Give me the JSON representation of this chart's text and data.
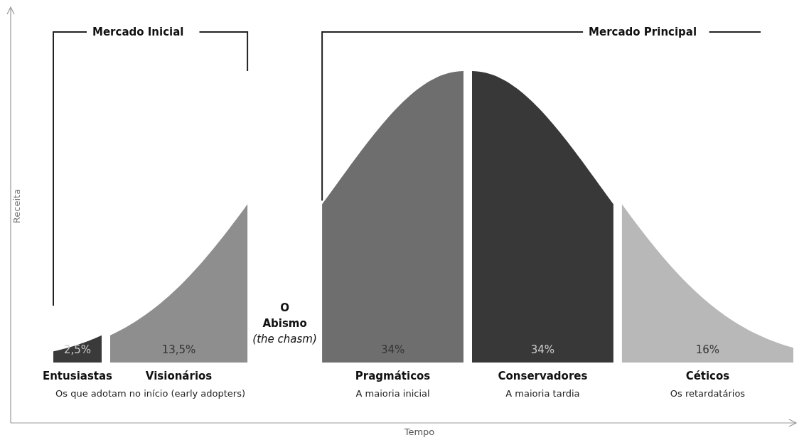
{
  "chart_data": {
    "type": "other",
    "xlabel": "Tempo",
    "ylabel": "Receita",
    "categories": [
      "Entusiastas",
      "Visionários",
      "Pragmáticos",
      "Conservadores",
      "Céticos"
    ],
    "values": [
      2.5,
      13.5,
      34,
      34,
      16
    ],
    "value_labels": [
      "2,5%",
      "13,5%",
      "34%",
      "34%",
      "16%"
    ],
    "colors": [
      "#3a3a3a",
      "#8e8e8e",
      "#6e6e6e",
      "#383838",
      "#b8b8b8"
    ],
    "annotations": [
      "Mercado Inicial",
      "Mercado Principal",
      "O\nAbismo\n(the chasm)",
      {
        "text": "Os que adotam no início (early adopters)",
        "x": "Visionários"
      },
      {
        "text": "A maioria inicial",
        "x": "Pragmáticos"
      },
      {
        "text": "A maioria tardia",
        "x": "Conservadores"
      },
      {
        "text": "Os retardatários",
        "x": "Céticos"
      }
    ]
  }
}
